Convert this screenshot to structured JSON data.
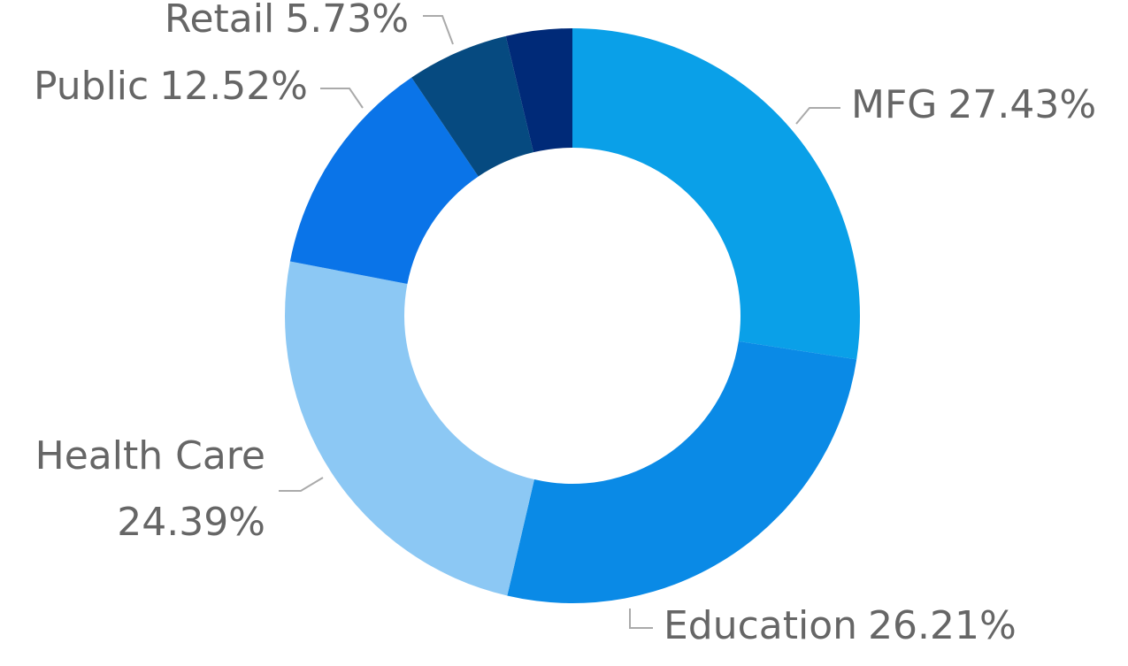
{
  "chart_data": {
    "type": "donut",
    "categories": [
      "MFG",
      "Education",
      "Health Care",
      "Public",
      "Retail",
      null
    ],
    "values": [
      27.43,
      26.21,
      24.39,
      12.52,
      5.73,
      3.72
    ],
    "value_labels": [
      "27.43%",
      "26.21%",
      "24.39%",
      "12.52%",
      "5.73%",
      null
    ],
    "colors": [
      "#0aa0e8",
      "#0a8ae6",
      "#8cc8f4",
      "#0a74e8",
      "#064a80",
      "#002a78"
    ]
  }
}
